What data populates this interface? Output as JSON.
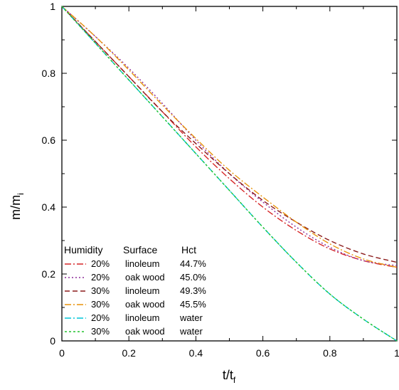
{
  "chart_data": {
    "type": "line",
    "xlabel_main": "t/t",
    "xlabel_sub": "f",
    "ylabel_main": "m/m",
    "ylabel_sub": "i",
    "xlim": [
      0,
      1
    ],
    "ylim": [
      0,
      1
    ],
    "x_ticks": [
      "0",
      "0.2",
      "0.4",
      "0.6",
      "0.8",
      "1"
    ],
    "y_ticks": [
      "0",
      "0.2",
      "0.4",
      "0.6",
      "0.8",
      "1"
    ],
    "grid": false,
    "legend_position": "bottom-left",
    "legend_headers": [
      "Humidity",
      "Surface",
      "Hct"
    ],
    "x": [
      0,
      0.1,
      0.2,
      0.3,
      0.4,
      0.5,
      0.6,
      0.7,
      0.8,
      0.9,
      1.0
    ],
    "series": [
      {
        "humidity": "20%",
        "surface": "linoleum",
        "hct": "44.7%",
        "color": "#d62728",
        "dash": "9,3,2,3",
        "values": [
          1.0,
          0.895,
          0.79,
          0.685,
          0.58,
          0.485,
          0.4,
          0.33,
          0.275,
          0.24,
          0.22
        ]
      },
      {
        "humidity": "20%",
        "surface": "oak wood",
        "hct": "45.0%",
        "color": "#8e2c9a",
        "dash": "2,3",
        "values": [
          1.0,
          0.91,
          0.815,
          0.71,
          0.6,
          0.5,
          0.415,
          0.34,
          0.28,
          0.24,
          0.225
        ]
      },
      {
        "humidity": "30%",
        "surface": "linoleum",
        "hct": "49.3%",
        "color": "#8b1a1a",
        "dash": "7,4",
        "values": [
          1.0,
          0.895,
          0.79,
          0.685,
          0.59,
          0.5,
          0.42,
          0.355,
          0.3,
          0.26,
          0.235
        ]
      },
      {
        "humidity": "30%",
        "surface": "oak wood",
        "hct": "45.5%",
        "color": "#e8940c",
        "dash": "9,3,2,3",
        "values": [
          1.0,
          0.91,
          0.81,
          0.705,
          0.605,
          0.51,
          0.43,
          0.355,
          0.29,
          0.245,
          0.22
        ]
      },
      {
        "humidity": "20%",
        "surface": "linoleum",
        "hct": "water",
        "color": "#00c5d8",
        "dash": "9,3,2,3",
        "values": [
          1.0,
          0.89,
          0.78,
          0.67,
          0.56,
          0.45,
          0.34,
          0.235,
          0.14,
          0.065,
          0.0
        ]
      },
      {
        "humidity": "30%",
        "surface": "oak wood",
        "hct": "water",
        "color": "#22c42e",
        "dash": "3,3",
        "values": [
          1.0,
          0.89,
          0.78,
          0.67,
          0.56,
          0.45,
          0.34,
          0.235,
          0.14,
          0.065,
          0.0
        ]
      }
    ]
  }
}
